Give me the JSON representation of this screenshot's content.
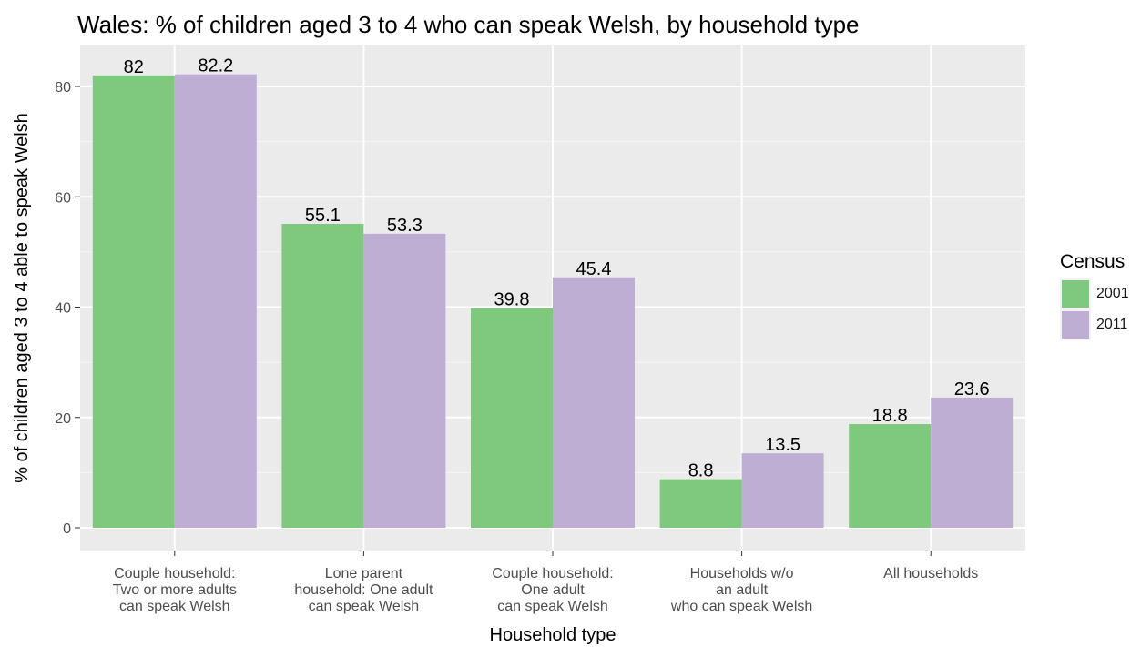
{
  "chart_data": {
    "type": "bar",
    "title": "Wales: % of children aged 3 to 4 who can speak Welsh, by household type",
    "xlabel": "Household type",
    "ylabel": "% of children aged 3 to 4 able to speak Welsh",
    "ylim": [
      0,
      88
    ],
    "yticks": [
      "0",
      "20",
      "40",
      "60",
      "80"
    ],
    "grid": true,
    "legend_title": "Census",
    "legend_position": "right",
    "categories": [
      [
        "Couple household:",
        "Two or more adults",
        "can speak Welsh"
      ],
      [
        "Lone parent",
        "household: One adult",
        "can speak Welsh"
      ],
      [
        "Couple household:",
        "One adult",
        "can speak Welsh"
      ],
      [
        "Households w/o",
        "an adult",
        "who can speak Welsh"
      ],
      [
        "All households"
      ]
    ],
    "series": [
      {
        "name": "2001",
        "color": "#7fc97f",
        "values": [
          82,
          55.1,
          39.8,
          8.8,
          18.8
        ],
        "labels": [
          "82",
          "55.1",
          "39.8",
          "8.8",
          "18.8"
        ]
      },
      {
        "name": "2011",
        "color": "#beaed4",
        "values": [
          82.2,
          53.3,
          45.4,
          13.5,
          23.6
        ],
        "labels": [
          "82.2",
          "53.3",
          "45.4",
          "13.5",
          "23.6"
        ]
      }
    ]
  }
}
